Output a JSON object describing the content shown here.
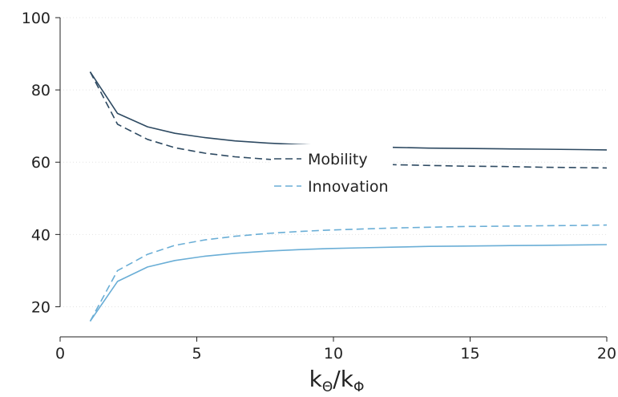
{
  "chart_data": {
    "type": "line",
    "xlabel": "kΘ/kΦ",
    "xlabel_parts": {
      "main1": "k",
      "sub1": "Θ",
      "slash": "/",
      "main2": "k",
      "sub2": "Φ"
    },
    "ylabel": "",
    "title": "",
    "xlim": [
      0,
      20
    ],
    "ylim": [
      15,
      100
    ],
    "xticks": [
      0,
      5,
      10,
      15,
      20
    ],
    "yticks": [
      20,
      40,
      60,
      80,
      100
    ],
    "grid": "y-dotted",
    "legend_position": "center-right",
    "legend_entries": [
      "Mobility",
      "Innovation"
    ],
    "series": [
      {
        "color": "#2e4a62",
        "dash": "solid",
        "x": [
          1.1,
          2.1,
          3.2,
          4.2,
          5.3,
          6.4,
          7.6,
          8.7,
          9.8,
          11.0,
          12.3,
          13.5,
          14.8,
          16.2,
          17.6,
          19.0,
          20.0
        ],
        "y": [
          85,
          73.5,
          69.8,
          68.0,
          66.8,
          65.9,
          65.3,
          64.9,
          64.6,
          64.3,
          64.1,
          63.9,
          63.8,
          63.7,
          63.6,
          63.5,
          63.4
        ]
      },
      {
        "color": "#2e4a62",
        "dash": "dashed",
        "x": [
          1.1,
          2.1,
          3.2,
          4.2,
          5.3,
          6.4,
          7.6,
          8.7,
          9.8,
          11.0,
          12.3,
          13.5,
          14.8,
          16.2,
          17.6,
          19.0,
          20.0
        ],
        "y": [
          85,
          70.5,
          66.3,
          64.0,
          62.5,
          61.5,
          60.8,
          60.3,
          59.9,
          59.6,
          59.3,
          59.1,
          58.9,
          58.8,
          58.6,
          58.5,
          58.4
        ]
      },
      {
        "color": "#6aaed6",
        "dash": "dashed",
        "x": [
          1.1,
          2.1,
          3.2,
          4.2,
          5.3,
          6.4,
          7.6,
          8.7,
          9.8,
          11.0,
          12.3,
          13.5,
          14.8,
          16.2,
          17.6,
          19.0,
          20.0
        ],
        "y": [
          16,
          30.0,
          34.5,
          37.0,
          38.5,
          39.5,
          40.3,
          40.8,
          41.2,
          41.5,
          41.8,
          42.0,
          42.2,
          42.3,
          42.4,
          42.5,
          42.6
        ]
      },
      {
        "color": "#6aaed6",
        "dash": "solid",
        "x": [
          1.1,
          2.1,
          3.2,
          4.2,
          5.3,
          6.4,
          7.6,
          8.7,
          9.8,
          11.0,
          12.3,
          13.5,
          14.8,
          16.2,
          17.6,
          19.0,
          20.0
        ],
        "y": [
          16,
          27.0,
          31.0,
          32.8,
          34.0,
          34.8,
          35.4,
          35.8,
          36.1,
          36.3,
          36.5,
          36.7,
          36.8,
          36.9,
          37.0,
          37.1,
          37.2
        ]
      }
    ],
    "legend": [
      {
        "label": "Mobility",
        "color": "#2e4a62",
        "dash": "dashed"
      },
      {
        "label": "Innovation",
        "color": "#6aaed6",
        "dash": "dashed"
      }
    ]
  }
}
